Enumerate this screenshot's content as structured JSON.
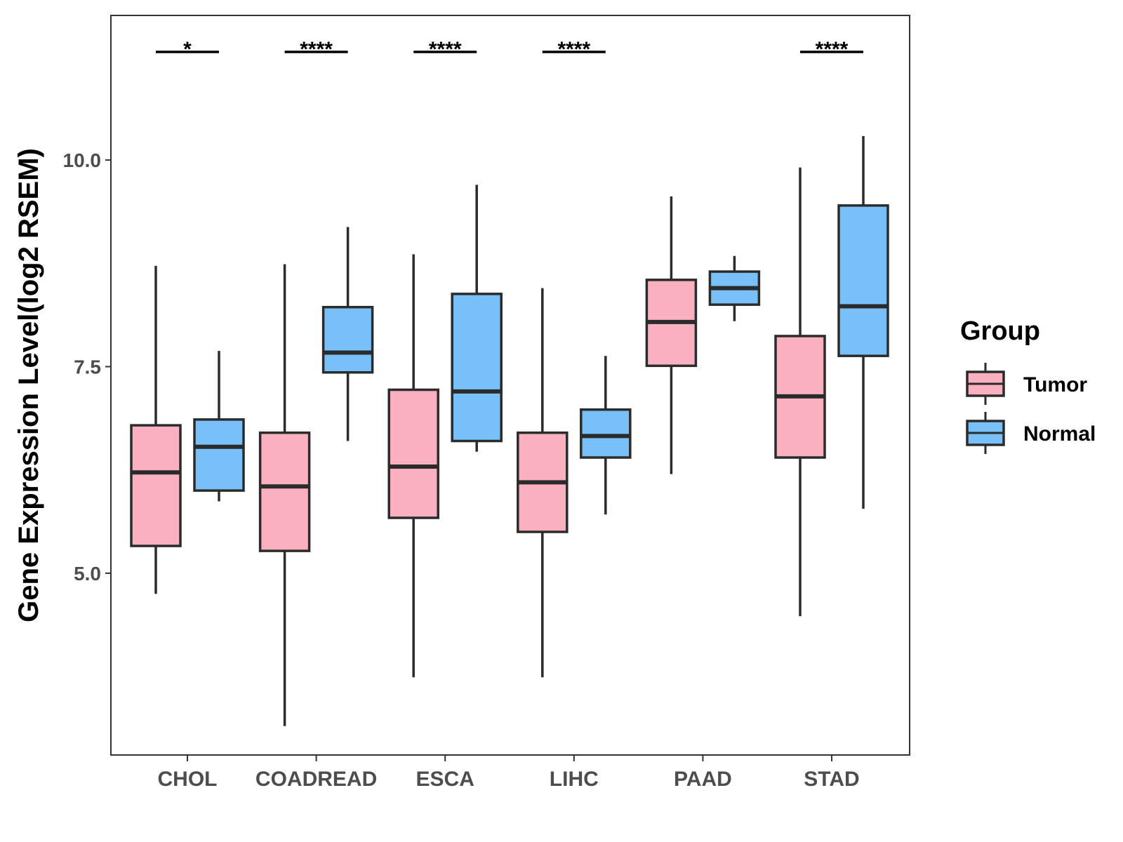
{
  "chart_data": {
    "type": "box",
    "title": "",
    "xlabel": "",
    "ylabel": "Gene Expression Level(log2 RSEM)",
    "ylim": [
      2.8,
      11.75
    ],
    "yticks": [
      5.0,
      7.5,
      10.0
    ],
    "ytick_labels": [
      "5.0",
      "7.5",
      "10.0"
    ],
    "categories": [
      "CHOL",
      "COADREAD",
      "ESCA",
      "LIHC",
      "PAAD",
      "STAD"
    ],
    "legend": {
      "title": "Group",
      "placement": "right"
    },
    "series": [
      {
        "name": "Tumor",
        "color": "#FBB0C0",
        "boxes": [
          {
            "min": 4.75,
            "q1": 5.33,
            "median": 6.22,
            "q3": 6.79,
            "max": 8.72
          },
          {
            "min": 3.15,
            "q1": 5.27,
            "median": 6.05,
            "q3": 6.7,
            "max": 8.74
          },
          {
            "min": 3.74,
            "q1": 5.67,
            "median": 6.29,
            "q3": 7.22,
            "max": 8.86
          },
          {
            "min": 3.74,
            "q1": 5.5,
            "median": 6.1,
            "q3": 6.7,
            "max": 8.45
          },
          {
            "min": 6.2,
            "q1": 7.51,
            "median": 8.04,
            "q3": 8.55,
            "max": 9.56
          },
          {
            "min": 4.48,
            "q1": 6.4,
            "median": 7.14,
            "q3": 7.87,
            "max": 9.91
          }
        ]
      },
      {
        "name": "Normal",
        "color": "#77C1F8",
        "boxes": [
          {
            "min": 5.87,
            "q1": 6.0,
            "median": 6.53,
            "q3": 6.86,
            "max": 7.69
          },
          {
            "min": 6.6,
            "q1": 7.43,
            "median": 7.67,
            "q3": 8.22,
            "max": 9.19
          },
          {
            "min": 6.47,
            "q1": 6.6,
            "median": 7.2,
            "q3": 8.38,
            "max": 9.7
          },
          {
            "min": 5.71,
            "q1": 6.4,
            "median": 6.66,
            "q3": 6.98,
            "max": 7.63
          },
          {
            "min": 8.05,
            "q1": 8.25,
            "median": 8.45,
            "q3": 8.65,
            "max": 8.84
          },
          {
            "min": 5.78,
            "q1": 7.63,
            "median": 8.23,
            "q3": 9.45,
            "max": 10.29
          }
        ]
      }
    ],
    "significance": [
      "*",
      "****",
      "****",
      "****",
      "",
      "****"
    ],
    "grid": false
  }
}
